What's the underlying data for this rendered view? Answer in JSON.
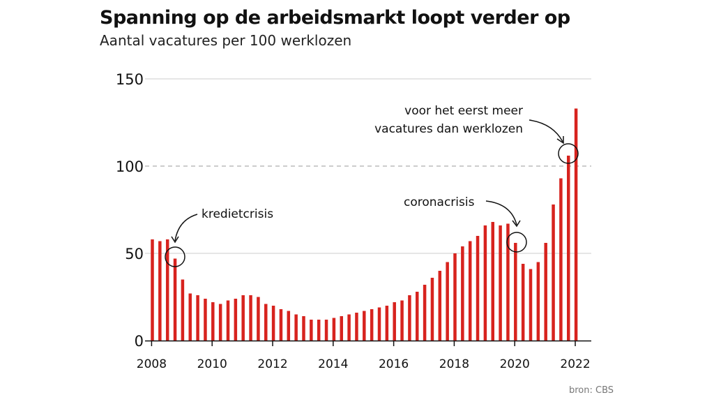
{
  "title": "Spanning op de arbeidsmarkt loopt verder op",
  "subtitle": "Aantal vacatures per 100 werklozen",
  "source": "bron: CBS",
  "colors": {
    "bar": "#d7231e",
    "text": "#111111",
    "grid": "#cccccc"
  },
  "chart_data": {
    "type": "bar",
    "title": "Spanning op de arbeidsmarkt loopt verder op",
    "subtitle": "Aantal vacatures per 100 werklozen",
    "xlabel": "",
    "ylabel": "",
    "ylim": [
      0,
      150
    ],
    "yticks": [
      0,
      50,
      100,
      150
    ],
    "xticks": [
      "2008",
      "2010",
      "2012",
      "2014",
      "2016",
      "2018",
      "2020",
      "2022"
    ],
    "grid": true,
    "reference_line": 100,
    "categories": [
      "2008 Q1",
      "2008 Q2",
      "2008 Q3",
      "2008 Q4",
      "2009 Q1",
      "2009 Q2",
      "2009 Q3",
      "2009 Q4",
      "2010 Q1",
      "2010 Q2",
      "2010 Q3",
      "2010 Q4",
      "2011 Q1",
      "2011 Q2",
      "2011 Q3",
      "2011 Q4",
      "2012 Q1",
      "2012 Q2",
      "2012 Q3",
      "2012 Q4",
      "2013 Q1",
      "2013 Q2",
      "2013 Q3",
      "2013 Q4",
      "2014 Q1",
      "2014 Q2",
      "2014 Q3",
      "2014 Q4",
      "2015 Q1",
      "2015 Q2",
      "2015 Q3",
      "2015 Q4",
      "2016 Q1",
      "2016 Q2",
      "2016 Q3",
      "2016 Q4",
      "2017 Q1",
      "2017 Q2",
      "2017 Q3",
      "2017 Q4",
      "2018 Q1",
      "2018 Q2",
      "2018 Q3",
      "2018 Q4",
      "2019 Q1",
      "2019 Q2",
      "2019 Q3",
      "2019 Q4",
      "2020 Q1",
      "2020 Q2",
      "2020 Q3",
      "2020 Q4",
      "2021 Q1",
      "2021 Q2",
      "2021 Q3",
      "2021 Q4",
      "2022 Q1"
    ],
    "values": [
      58,
      57,
      58,
      47,
      35,
      27,
      26,
      24,
      22,
      21,
      23,
      24,
      26,
      26,
      25,
      21,
      20,
      18,
      17,
      15,
      14,
      12,
      12,
      12,
      13,
      14,
      15,
      16,
      17,
      18,
      19,
      20,
      22,
      23,
      26,
      28,
      32,
      36,
      40,
      45,
      50,
      54,
      57,
      60,
      66,
      68,
      66,
      67,
      56,
      44,
      41,
      45,
      56,
      78,
      93,
      106,
      133
    ],
    "annotations": [
      {
        "text": "kredietcrisis",
        "target": "2008 Q4"
      },
      {
        "text": "coronacrisis",
        "target": "2020 Q1"
      },
      {
        "text_lines": [
          "voor het eerst meer",
          "vacatures dan werklozen"
        ],
        "target": "2021 Q4"
      }
    ]
  }
}
